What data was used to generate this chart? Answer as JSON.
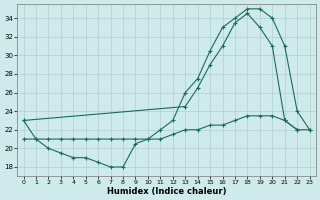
{
  "title": "",
  "xlabel": "Humidex (Indice chaleur)",
  "ylabel": "",
  "bg_color": "#ceeaea",
  "line_color": "#1a6b5a",
  "grid_color": "#b0d0d0",
  "xlim": [
    -0.5,
    23.5
  ],
  "ylim": [
    17.0,
    35.5
  ],
  "yticks": [
    18,
    20,
    22,
    24,
    26,
    28,
    30,
    32,
    34
  ],
  "xticks": [
    0,
    1,
    2,
    3,
    4,
    5,
    6,
    7,
    8,
    9,
    10,
    11,
    12,
    13,
    14,
    15,
    16,
    17,
    18,
    19,
    20,
    21,
    22,
    23
  ],
  "hours": [
    0,
    1,
    2,
    3,
    4,
    5,
    6,
    7,
    8,
    9,
    10,
    11,
    12,
    13,
    14,
    15,
    16,
    17,
    18,
    19,
    20,
    21,
    22,
    23
  ],
  "line1": [
    23,
    21,
    20,
    19.5,
    19,
    19,
    18.5,
    18,
    18,
    20.5,
    21,
    22,
    23,
    26,
    27.5,
    30.5,
    33,
    34,
    35,
    35,
    34,
    31,
    24,
    22
  ],
  "line2": [
    23,
    null,
    null,
    null,
    null,
    null,
    null,
    null,
    null,
    null,
    null,
    null,
    null,
    24.5,
    26.5,
    29,
    31,
    33.5,
    34.5,
    33,
    31,
    23,
    22,
    null
  ],
  "line3": [
    21,
    21,
    21,
    21,
    21,
    21,
    21,
    21,
    21,
    21,
    21,
    21,
    21.5,
    22,
    22,
    22.5,
    22.5,
    23,
    23.5,
    23.5,
    23.5,
    23,
    22,
    22
  ]
}
